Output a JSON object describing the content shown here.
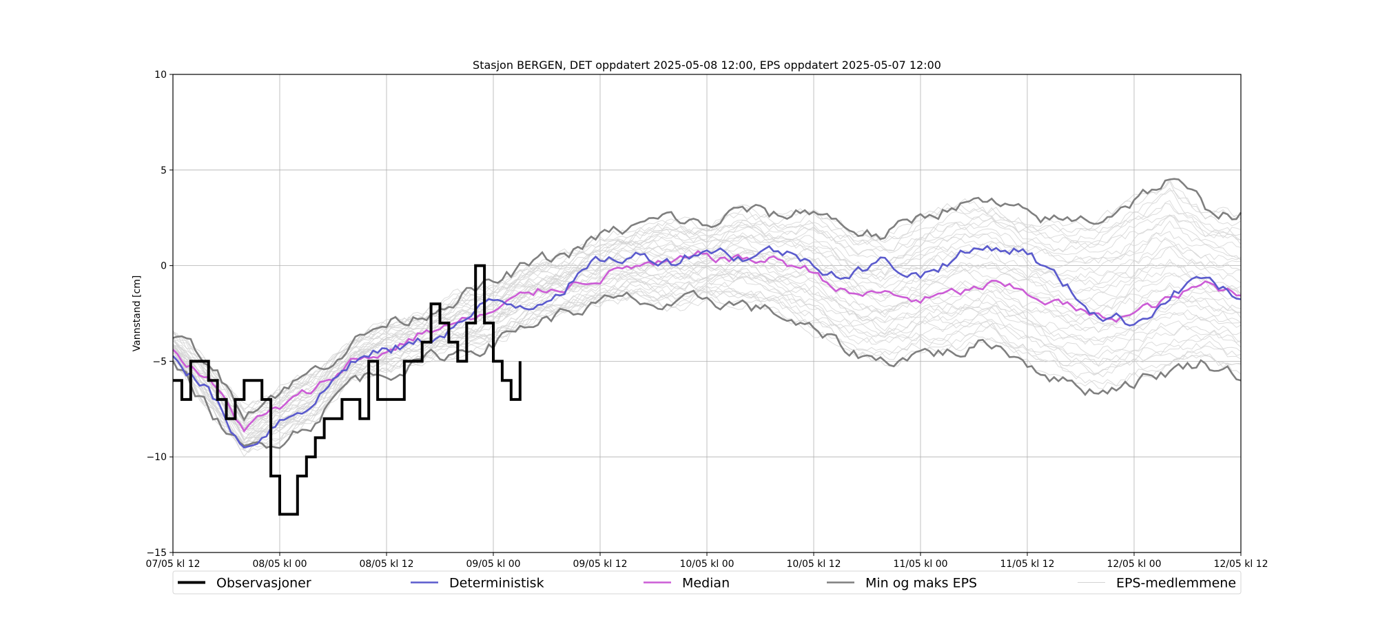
{
  "chart_data": {
    "type": "line",
    "title": "Stasjon BERGEN, DET oppdatert 2025-05-08 12:00, EPS oppdatert 2025-05-07 12:00",
    "ylabel": "Vannstand [cm]",
    "xlabel": "",
    "ylim": [
      -15,
      10
    ],
    "xlim": [
      "2025-05-07T12:00",
      "2025-05-12T12:00"
    ],
    "grid": true,
    "legend_position": "bottom",
    "yticks": [
      -15,
      -10,
      -5,
      0,
      5,
      10
    ],
    "xticks": [
      "07/05 kl 12",
      "08/05 kl 00",
      "08/05 kl 12",
      "09/05 kl 00",
      "09/05 kl 12",
      "10/05 kl 00",
      "10/05 kl 12",
      "11/05 kl 00",
      "11/05 kl 12",
      "12/05 kl 00",
      "12/05 kl 12"
    ],
    "series": [
      {
        "name": "Observasjoner",
        "color": "#000000",
        "x": [
          "2025-05-07T12:00",
          "2025-05-07T13:00",
          "2025-05-07T14:00",
          "2025-05-07T15:00",
          "2025-05-07T16:00",
          "2025-05-07T17:00",
          "2025-05-07T18:00",
          "2025-05-07T19:00",
          "2025-05-07T20:00",
          "2025-05-07T21:00",
          "2025-05-07T22:00",
          "2025-05-07T23:00",
          "2025-05-08T00:00",
          "2025-05-08T01:00",
          "2025-05-08T02:00",
          "2025-05-08T03:00",
          "2025-05-08T04:00",
          "2025-05-08T05:00",
          "2025-05-08T06:00",
          "2025-05-08T07:00",
          "2025-05-08T08:00",
          "2025-05-08T09:00",
          "2025-05-08T10:00",
          "2025-05-08T11:00",
          "2025-05-08T12:00",
          "2025-05-08T13:00",
          "2025-05-08T14:00",
          "2025-05-08T15:00",
          "2025-05-08T16:00",
          "2025-05-08T17:00",
          "2025-05-08T18:00",
          "2025-05-08T19:00",
          "2025-05-08T20:00",
          "2025-05-08T21:00",
          "2025-05-08T22:00",
          "2025-05-08T23:00",
          "2025-05-09T00:00",
          "2025-05-09T01:00",
          "2025-05-09T02:00",
          "2025-05-09T03:00"
        ],
        "values": [
          -6,
          -7,
          -5,
          -5,
          -6,
          -7,
          -8,
          -7,
          -6,
          -6,
          -7,
          -11,
          -13,
          -13,
          -11,
          -10,
          -9,
          -8,
          -8,
          -7,
          -7,
          -8,
          -5,
          -7,
          -7,
          -7,
          -5,
          -5,
          -4,
          -2,
          -3,
          -4,
          -5,
          -3,
          0,
          -3,
          -5,
          -6,
          -7,
          -5
        ]
      },
      {
        "name": "Deterministisk",
        "color": "#5a5acd",
        "x": [
          "2025-05-07T12:00",
          "2025-05-07T16:00",
          "2025-05-07T20:00",
          "2025-05-08T00:00",
          "2025-05-08T04:00",
          "2025-05-08T08:00",
          "2025-05-08T12:00",
          "2025-05-08T16:00",
          "2025-05-08T20:00",
          "2025-05-09T00:00",
          "2025-05-09T04:00",
          "2025-05-09T08:00",
          "2025-05-09T12:00",
          "2025-05-09T16:00",
          "2025-05-09T20:00",
          "2025-05-10T00:00",
          "2025-05-10T04:00",
          "2025-05-10T08:00",
          "2025-05-10T12:00",
          "2025-05-10T16:00",
          "2025-05-10T20:00",
          "2025-05-11T00:00",
          "2025-05-11T04:00",
          "2025-05-11T08:00",
          "2025-05-11T12:00",
          "2025-05-11T16:00",
          "2025-05-11T20:00",
          "2025-05-12T00:00",
          "2025-05-12T04:00",
          "2025-05-12T08:00",
          "2025-05-12T12:00"
        ],
        "values": [
          -4.5,
          -6.5,
          -9.5,
          -8,
          -7,
          -5,
          -4.5,
          -4,
          -3,
          -2,
          -2,
          -1,
          0.2,
          0.5,
          0.3,
          1,
          0.5,
          0.8,
          0.2,
          -0.5,
          0.2,
          -0.5,
          0.5,
          1,
          0.8,
          -1,
          -2.5,
          -3,
          -1.5,
          -0.5,
          -2
        ]
      },
      {
        "name": "Median",
        "color": "#cc5cd6",
        "x": [
          "2025-05-07T12:00",
          "2025-05-07T16:00",
          "2025-05-07T20:00",
          "2025-05-08T00:00",
          "2025-05-08T04:00",
          "2025-05-08T08:00",
          "2025-05-08T12:00",
          "2025-05-08T16:00",
          "2025-05-08T20:00",
          "2025-05-09T00:00",
          "2025-05-09T04:00",
          "2025-05-09T08:00",
          "2025-05-09T12:00",
          "2025-05-09T16:00",
          "2025-05-09T20:00",
          "2025-05-10T00:00",
          "2025-05-10T04:00",
          "2025-05-10T08:00",
          "2025-05-10T12:00",
          "2025-05-10T16:00",
          "2025-05-10T20:00",
          "2025-05-11T00:00",
          "2025-05-11T04:00",
          "2025-05-11T08:00",
          "2025-05-11T12:00",
          "2025-05-11T16:00",
          "2025-05-11T20:00",
          "2025-05-12T00:00",
          "2025-05-12T04:00",
          "2025-05-12T08:00",
          "2025-05-12T12:00"
        ],
        "values": [
          -4.5,
          -6,
          -8.5,
          -7.5,
          -6.5,
          -5,
          -4.5,
          -3.5,
          -3,
          -2.5,
          -1.5,
          -1,
          -0.5,
          0,
          0,
          0.5,
          0.3,
          0.3,
          -0.3,
          -1.5,
          -1.5,
          -1.8,
          -1.5,
          -1,
          -1.5,
          -2,
          -2.8,
          -2.5,
          -1.8,
          -1,
          -1.5
        ]
      },
      {
        "name": "Min og maks EPS",
        "color": "#7f7f7f",
        "x": [
          "2025-05-07T12:00",
          "2025-05-07T16:00",
          "2025-05-07T20:00",
          "2025-05-08T00:00",
          "2025-05-08T04:00",
          "2025-05-08T08:00",
          "2025-05-08T12:00",
          "2025-05-08T16:00",
          "2025-05-08T20:00",
          "2025-05-09T00:00",
          "2025-05-09T04:00",
          "2025-05-09T08:00",
          "2025-05-09T12:00",
          "2025-05-09T16:00",
          "2025-05-09T20:00",
          "2025-05-10T00:00",
          "2025-05-10T04:00",
          "2025-05-10T08:00",
          "2025-05-10T12:00",
          "2025-05-10T16:00",
          "2025-05-10T20:00",
          "2025-05-11T00:00",
          "2025-05-11T04:00",
          "2025-05-11T08:00",
          "2025-05-11T12:00",
          "2025-05-11T16:00",
          "2025-05-11T20:00",
          "2025-05-12T00:00",
          "2025-05-12T04:00",
          "2025-05-12T08:00",
          "2025-05-12T12:00"
        ],
        "values_max": [
          -3.5,
          -5,
          -7.5,
          -6.5,
          -5.5,
          -4,
          -3,
          -2.5,
          -1.5,
          -1,
          0,
          0.5,
          1.5,
          2,
          2.5,
          2,
          3,
          2.5,
          3,
          2,
          1.5,
          2.5,
          3.3,
          3.2,
          2.5,
          2.3,
          2.5,
          3.5,
          4.5,
          3,
          2.7
        ],
        "values_min": [
          -5,
          -7.5,
          -9.8,
          -9,
          -8,
          -6,
          -5.5,
          -5,
          -4.5,
          -4,
          -3,
          -2.5,
          -2,
          -1.8,
          -2.3,
          -1.8,
          -2,
          -2.5,
          -3.5,
          -4.5,
          -5,
          -4.5,
          -4.5,
          -4,
          -5,
          -6,
          -6.5,
          -6,
          -5.5,
          -5,
          -5.7
        ]
      },
      {
        "name": "EPS-medlemmene",
        "color": "#d3d3d3"
      }
    ]
  }
}
